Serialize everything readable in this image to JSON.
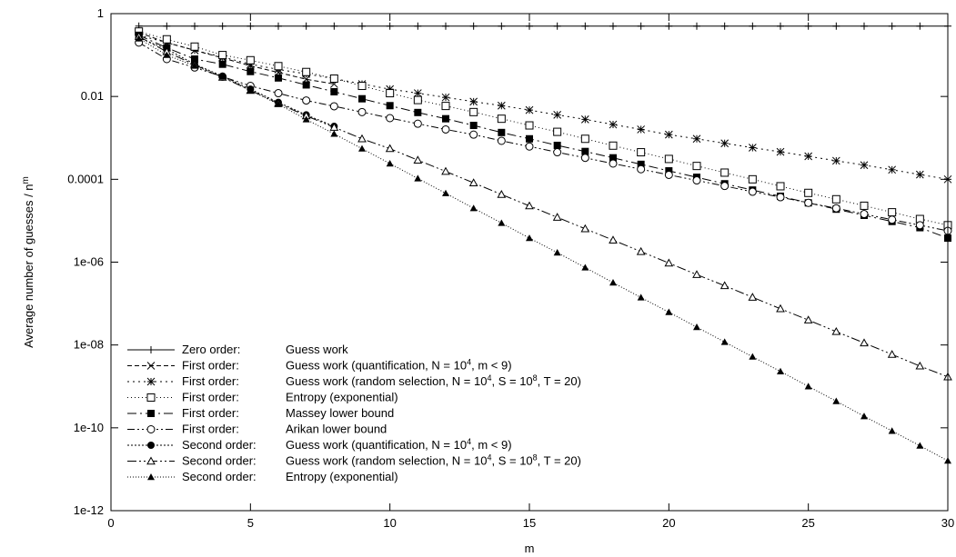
{
  "chart_data": {
    "type": "line",
    "title": "",
    "xlabel": "m",
    "ylabel_base": "Average number of guesses / n",
    "ylabel_sup": "m",
    "y_scale": "log",
    "xlim": [
      0,
      30
    ],
    "ylim": [
      1e-12,
      1
    ],
    "x_ticks": [
      0,
      5,
      10,
      15,
      20,
      25,
      30
    ],
    "y_ticks": [
      1,
      0.01,
      0.0001,
      1e-06,
      1e-08,
      1e-10,
      1e-12
    ],
    "y_tick_labels": [
      "1",
      "0.01",
      "0.0001",
      "1e-06",
      "1e-08",
      "1e-10",
      "1e-12"
    ],
    "grid": false,
    "legend_position": "bottom-left",
    "series": [
      {
        "order": "Zero order:",
        "label_parts": [
          {
            "t": "Guess work"
          }
        ],
        "marker": "plus",
        "dash": "solid",
        "x": [
          1,
          2,
          3,
          4,
          5,
          6,
          7,
          8,
          9,
          10,
          11,
          12,
          13,
          14,
          15,
          16,
          17,
          18,
          19,
          20,
          21,
          22,
          23,
          24,
          25,
          26,
          27,
          28,
          29,
          30
        ],
        "y": [
          0.5,
          0.5,
          0.5,
          0.5,
          0.5,
          0.5,
          0.5,
          0.5,
          0.5,
          0.5,
          0.5,
          0.5,
          0.5,
          0.5,
          0.5,
          0.5,
          0.5,
          0.5,
          0.5,
          0.5,
          0.5,
          0.5,
          0.5,
          0.5,
          0.5,
          0.5,
          0.5,
          0.5,
          0.5,
          0.5
        ]
      },
      {
        "order": "First order:",
        "label_parts": [
          {
            "t": "Guess work (quantification, N = 10"
          },
          {
            "t": "4",
            "sup": true
          },
          {
            "t": ", m < 9)"
          }
        ],
        "marker": "cross",
        "dash": "5,3",
        "x": [
          1,
          2,
          3,
          4,
          5,
          6,
          7,
          8
        ],
        "y": [
          0.35,
          0.2,
          0.13,
          0.085,
          0.055,
          0.038,
          0.026,
          0.02
        ]
      },
      {
        "order": "First order:",
        "label_parts": [
          {
            "t": "Guess work (random selection, N = 10"
          },
          {
            "t": "4",
            "sup": true
          },
          {
            "t": ", S = 10"
          },
          {
            "t": "8",
            "sup": true
          },
          {
            "t": ", T = 20)"
          }
        ],
        "marker": "asterisk",
        "dash": "2,4",
        "x": [
          1,
          2,
          3,
          4,
          5,
          6,
          7,
          8,
          9,
          10,
          11,
          12,
          13,
          14,
          15,
          16,
          17,
          18,
          19,
          20,
          21,
          22,
          23,
          24,
          25,
          26,
          27,
          28,
          29,
          30
        ],
        "y": [
          0.3,
          0.2,
          0.13,
          0.09,
          0.06,
          0.045,
          0.035,
          0.027,
          0.02,
          0.015,
          0.012,
          0.0095,
          0.0075,
          0.006,
          0.0047,
          0.0036,
          0.0028,
          0.0021,
          0.0016,
          0.0012,
          0.00095,
          0.00074,
          0.00058,
          0.00046,
          0.00036,
          0.00028,
          0.00022,
          0.00017,
          0.00013,
          0.0001
        ]
      },
      {
        "order": "First order:",
        "label_parts": [
          {
            "t": "Entropy (exponential)"
          }
        ],
        "marker": "open-square",
        "dash": "1,3",
        "x": [
          1,
          2,
          3,
          4,
          5,
          6,
          7,
          8,
          9,
          10,
          11,
          12,
          13,
          14,
          15,
          16,
          17,
          18,
          19,
          20,
          21,
          22,
          23,
          24,
          25,
          26,
          27,
          28,
          29,
          30
        ],
        "y": [
          0.37,
          0.24,
          0.16,
          0.1,
          0.075,
          0.054,
          0.039,
          0.027,
          0.018,
          0.012,
          0.0082,
          0.0059,
          0.0042,
          0.0029,
          0.002,
          0.0014,
          0.00095,
          0.00065,
          0.00045,
          0.00031,
          0.00021,
          0.000145,
          0.0001,
          6.8e-05,
          4.7e-05,
          3.3e-05,
          2.3e-05,
          1.6e-05,
          1.1e-05,
          7.8e-06
        ]
      },
      {
        "order": "First order:",
        "label_parts": [
          {
            "t": "Massey lower bound"
          }
        ],
        "marker": "filled-square",
        "dash": "10,4,2,4",
        "x": [
          1,
          2,
          3,
          4,
          5,
          6,
          7,
          8,
          9,
          10,
          11,
          12,
          13,
          14,
          15,
          16,
          17,
          18,
          19,
          20,
          21,
          22,
          23,
          24,
          25,
          26,
          27,
          28,
          29,
          30
        ],
        "y": [
          0.3,
          0.15,
          0.08,
          0.06,
          0.04,
          0.028,
          0.019,
          0.013,
          0.0088,
          0.006,
          0.0041,
          0.0029,
          0.002,
          0.00135,
          0.00095,
          0.00066,
          0.00047,
          0.00033,
          0.00023,
          0.00016,
          0.000112,
          7.8e-05,
          5.5e-05,
          3.9e-05,
          2.7e-05,
          1.9e-05,
          1.35e-05,
          9.6e-06,
          6.8e-06,
          3.8e-06
        ]
      },
      {
        "order": "First order:",
        "label_parts": [
          {
            "t": "Arikan lower bound"
          }
        ],
        "marker": "open-circle",
        "dash": "8,3,2,3,2,3",
        "x": [
          1,
          2,
          3,
          4,
          5,
          6,
          7,
          8,
          9,
          10,
          11,
          12,
          13,
          14,
          15,
          16,
          17,
          18,
          19,
          20,
          21,
          22,
          23,
          24,
          25,
          26,
          27,
          28,
          29,
          30
        ],
        "y": [
          0.2,
          0.08,
          0.05,
          0.03,
          0.018,
          0.012,
          0.008,
          0.0058,
          0.0042,
          0.003,
          0.0022,
          0.0016,
          0.0012,
          0.00085,
          0.00062,
          0.00045,
          0.00033,
          0.00024,
          0.000175,
          0.000128,
          9.4e-05,
          6.9e-05,
          5e-05,
          3.7e-05,
          2.7e-05,
          2e-05,
          1.45e-05,
          1.06e-05,
          7.8e-06,
          5.7e-06
        ]
      },
      {
        "order": "Second order:",
        "label_parts": [
          {
            "t": "Guess work (quantification, N = 10"
          },
          {
            "t": "4",
            "sup": true
          },
          {
            "t": ", m < 9)"
          }
        ],
        "marker": "filled-circle",
        "dash": "2,2",
        "x": [
          1,
          2,
          3,
          4,
          5,
          6,
          7,
          8
        ],
        "y": [
          0.26,
          0.14,
          0.06,
          0.031,
          0.015,
          0.0072,
          0.0036,
          0.0019
        ]
      },
      {
        "order": "Second order:",
        "label_parts": [
          {
            "t": "Guess work (random selection, N = 10"
          },
          {
            "t": "4",
            "sup": true
          },
          {
            "t": ", S = 10"
          },
          {
            "t": "8",
            "sup": true
          },
          {
            "t": ", T = 20)"
          }
        ],
        "marker": "open-triangle",
        "dash": "10,3,2,3,2,3",
        "x": [
          1,
          2,
          3,
          4,
          5,
          6,
          7,
          8,
          9,
          10,
          11,
          12,
          13,
          14,
          15,
          16,
          17,
          18,
          19,
          20,
          21,
          22,
          23,
          24,
          25,
          26,
          27,
          28,
          29,
          30
        ],
        "y": [
          0.28,
          0.12,
          0.058,
          0.029,
          0.014,
          0.0068,
          0.0034,
          0.0018,
          0.00095,
          0.00055,
          0.00029,
          0.000155,
          8.2e-05,
          4.3e-05,
          2.28e-05,
          1.21e-05,
          6.4e-06,
          3.4e-06,
          1.8e-06,
          9.5e-07,
          5e-07,
          2.7e-07,
          1.42e-07,
          7.5e-08,
          4e-08,
          2.1e-08,
          1.12e-08,
          5.9e-09,
          3.1e-09,
          1.7e-09
        ]
      },
      {
        "order": "Second order:",
        "label_parts": [
          {
            "t": "Entropy (exponential)"
          }
        ],
        "marker": "filled-triangle",
        "dash": "1,2",
        "x": [
          1,
          2,
          3,
          4,
          5,
          6,
          7,
          8,
          9,
          10,
          11,
          12,
          13,
          14,
          15,
          16,
          17,
          18,
          19,
          20,
          21,
          22,
          23,
          24,
          25,
          26,
          27,
          28,
          29,
          30
        ],
        "y": [
          0.25,
          0.1,
          0.055,
          0.03,
          0.014,
          0.0065,
          0.0028,
          0.00125,
          0.00055,
          0.00024,
          0.000105,
          4.6e-05,
          2e-05,
          8.8e-06,
          3.8e-06,
          1.7e-06,
          7.4e-07,
          3.2e-07,
          1.4e-07,
          6.2e-08,
          2.7e-08,
          1.18e-08,
          5.2e-09,
          2.3e-09,
          1e-09,
          4.4e-10,
          1.9e-10,
          8.4e-11,
          3.7e-11,
          1.6e-11
        ]
      }
    ]
  }
}
